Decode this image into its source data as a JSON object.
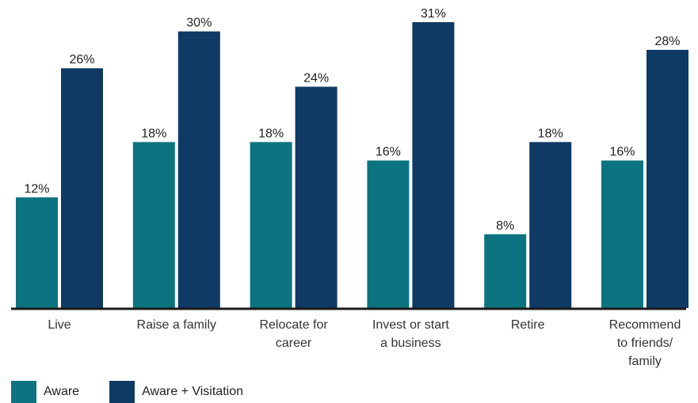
{
  "chart_data": {
    "type": "bar",
    "categories": [
      [
        "Live"
      ],
      [
        "Raise a family"
      ],
      [
        "Relocate for",
        "career"
      ],
      [
        "Invest or start",
        "a business"
      ],
      [
        "Retire"
      ],
      [
        "Recommend",
        "to friends/",
        "family"
      ]
    ],
    "series": [
      {
        "name": "Aware",
        "values": [
          12,
          18,
          18,
          16,
          8,
          16
        ],
        "color": "#0b7480"
      },
      {
        "name": "Aware + Visitation",
        "values": [
          26,
          30,
          24,
          31,
          18,
          28
        ],
        "color": "#0e3a63"
      }
    ],
    "value_suffix": "%",
    "ylim": [
      0,
      31
    ],
    "grid": false,
    "legend_position": "bottom-left"
  }
}
